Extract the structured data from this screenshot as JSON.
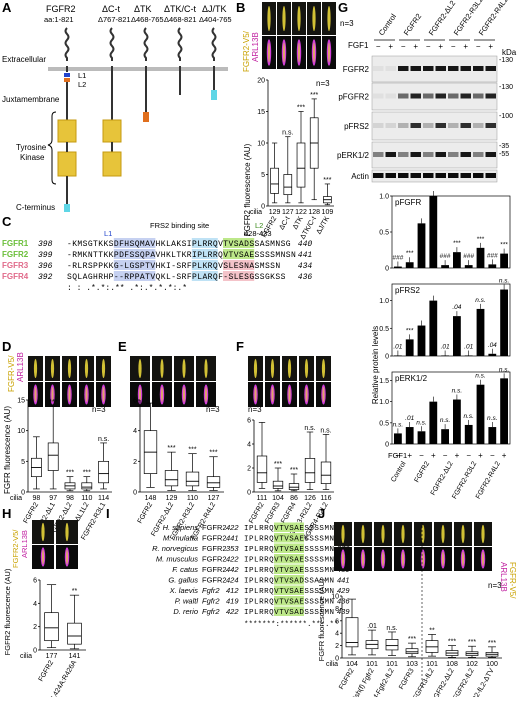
{
  "panel_letters": [
    "A",
    "B",
    "C",
    "D",
    "E",
    "F",
    "G",
    "H",
    "I",
    "J"
  ],
  "panel_a": {
    "constructs": [
      "FGFR2",
      "ΔC-t",
      "ΔTK",
      "ΔTK/C-t",
      "ΔJ/TK"
    ],
    "ranges": [
      "aa:1-821",
      "Δ767-821",
      "Δ468-765",
      "Δ468-821",
      "Δ404-765"
    ],
    "domains": [
      "Extracellular",
      "Juxtamembrane",
      "Tyrosine Kinase",
      "C-terminus"
    ],
    "motifs": [
      "L1",
      "L2"
    ]
  },
  "panel_b": {
    "channel_labels": [
      "FGFR2-V5/",
      "ARL13B"
    ],
    "ylabel": "FGFR2 fluorescence (AU)",
    "n": "n=3",
    "yticks": [
      "0",
      "5",
      "10",
      "15",
      "20"
    ],
    "categories": [
      "FGFR2",
      "ΔC-t",
      "ΔTK",
      "ΔTK/C-t",
      "ΔJ/TK"
    ],
    "cilia_label": "cilia",
    "cilia": [
      "129",
      "127",
      "122",
      "128",
      "109"
    ],
    "sig": [
      "",
      "n.s.",
      "***",
      "***",
      "***"
    ]
  },
  "panel_c": {
    "binding_site": "FRS2 binding site",
    "l1": "L1",
    "l2": "L2",
    "l2_range": "428-433",
    "rows": [
      {
        "name": "FGFR1",
        "start": "398",
        "seq": "-KMSGTKKSDFHSQMAVHKLAKSIPLRRQVTVSADSSASMNSG",
        "end": "440",
        "color": "#6bbf3a"
      },
      {
        "name": "FGFR2",
        "start": "399",
        "seq": "-RMKNTTKKPDFSSQPAVHKLTKRIPLRRQVTVSAESSSSMNSN",
        "end": "441",
        "color": "#6bbf3a"
      },
      {
        "name": "FGFR3",
        "start": "396",
        "seq": "-RLRSPPKKG-LGSPTVHKI-SRFPLKRQVSLESNASMSSN",
        "end": "434",
        "color": "#e06a8a"
      },
      {
        "name": "FGFR4",
        "start": "392",
        "seq": "SQLAGHRHP--RPPATVQKL-SRFPLARQF-SLESGSSGKSS",
        "end": "436",
        "color": "#e06a8a"
      }
    ],
    "consensus": ":          :   .*.*:.** .*:.*.*.*:.*"
  },
  "panel_d": {
    "channel_labels": [
      "FGFR-V5/",
      "ARL13B"
    ],
    "ylabel": "FGFR fluorescence (AU)",
    "n": "n=3",
    "yticks": [
      "0",
      "5",
      "10",
      "15"
    ],
    "categories": [
      "FGFR2",
      "FGFR2-ΔL1",
      "FGFR2-ΔL2",
      "FGFR2-ΔL1L2",
      "FGFR2-R3L1"
    ],
    "cilia_label": "cilia",
    "cilia": [
      "98",
      "97",
      "98",
      "110",
      "114"
    ],
    "sig": [
      "",
      "***",
      "***",
      "***",
      "n.s."
    ]
  },
  "panel_e": {
    "n": "n=3",
    "yticks": [
      "0",
      "2",
      "4",
      "6"
    ],
    "categories": [
      "FGFR2",
      "FGFR2-ΔL2",
      "FGFR2-R3L2",
      "FGFR2-R4L2"
    ],
    "cilia": [
      "148",
      "129",
      "110",
      "127"
    ],
    "sig": [
      "",
      "***",
      "***",
      "***"
    ]
  },
  "panel_f": {
    "n": "n=3",
    "yticks": [
      "0",
      "2",
      "4",
      "6"
    ],
    "categories": [
      "FGFR2",
      "FGFR3",
      "FGFR4",
      "FGFR3-R2L2",
      "FGFR4-R2L2"
    ],
    "cilia": [
      "111",
      "104",
      "86",
      "126",
      "116"
    ],
    "sig": [
      "",
      "***",
      "***",
      "n.s.",
      "n.s."
    ]
  },
  "panel_g": {
    "n": "n=3",
    "lanes": [
      "Control",
      "FGFR2",
      "FGFR2-ΔL2",
      "FGFR2-R3L2",
      "FGFR2-R4L2"
    ],
    "fgf1_label": "FGF1",
    "kda_label": "kDa",
    "blots": [
      {
        "name": "FGFR2",
        "markers": [
          "130"
        ]
      },
      {
        "name": "pFGFR2",
        "markers": [
          "130"
        ]
      },
      {
        "name": "pFRS2",
        "markers": [
          "100"
        ]
      },
      {
        "name": "pERK1/2",
        "markers": [
          "35",
          "55"
        ]
      },
      {
        "name": "Actin",
        "markers": []
      }
    ]
  },
  "panel_g_bars": {
    "ylabel": "Relative protein levels",
    "fgf1_label": "FGF1",
    "categories": [
      "Control",
      "FGFR2",
      "FGFR2-ΔL2",
      "FGFR2-R3L2",
      "FGFR2-R4L2"
    ],
    "subplots": [
      {
        "title": "pFGFR",
        "yticks": [
          "0",
          "0.5",
          "1.0"
        ],
        "values": [
          0.02,
          0.08,
          0.62,
          1.0,
          0.04,
          0.22,
          0.04,
          0.28,
          0.05,
          0.2
        ],
        "labels": [
          "###",
          "***",
          "",
          "",
          "###",
          "***",
          "###",
          "***",
          "###",
          "***"
        ]
      },
      {
        "title": "pFRS2",
        "yticks": [
          "0",
          "0.5",
          "1.0"
        ],
        "values": [
          0.01,
          0.3,
          0.55,
          1.0,
          0.01,
          0.72,
          0.01,
          0.85,
          0.04,
          1.2
        ],
        "labels": [
          ".01",
          "***",
          "",
          "",
          ".01",
          ".04",
          ".01",
          "n.s.",
          ".04",
          "n.s."
        ]
      },
      {
        "title": "pERK1/2",
        "yticks": [
          "0",
          "0.5",
          "1.0",
          "1.5"
        ],
        "values": [
          0.25,
          0.4,
          0.3,
          1.0,
          0.35,
          1.05,
          0.45,
          1.4,
          0.4,
          1.55
        ],
        "labels": [
          "n.s.",
          ".01",
          "n.s.",
          "",
          "n.s.",
          "n.s.",
          "n.s.",
          "n.s.",
          "n.s.",
          "n.s."
        ]
      }
    ]
  },
  "panel_h": {
    "channel_labels": [
      "FGFR2-V5/",
      "ARL13B"
    ],
    "ylabel": "FGFR2 fluorescence (AU)",
    "yticks": [
      "0",
      "2",
      "4",
      "6"
    ],
    "categories": [
      "FGFR2",
      "L424A:R426A"
    ],
    "cilia_label": "cilia",
    "cilia": [
      "177",
      "141"
    ],
    "sig": [
      "",
      "**"
    ]
  },
  "panel_i": {
    "rows": [
      {
        "species": "H. sapiens",
        "gene": "FGFR2",
        "start": "422",
        "seq": "IPLRRQVTVSAESSSSMN",
        "end": "439"
      },
      {
        "species": "M. mulatta",
        "gene": "FGFR2",
        "start": "441",
        "seq": "IPLRRQVTVSAESSSSMN",
        "end": "458"
      },
      {
        "species": "R. norvegicus",
        "gene": "FGFR2",
        "start": "353",
        "seq": "IPLRRQVTVSAESSSSMN",
        "end": "370"
      },
      {
        "species": "M. musculus",
        "gene": "FGFR2",
        "start": "422",
        "seq": "IPLRRQVTVSAESSSSMN",
        "end": "439"
      },
      {
        "species": "F. catus",
        "gene": "FGFR2",
        "start": "442",
        "seq": "IPLRRQVTVSAESSSSMN",
        "end": "459"
      },
      {
        "species": "G. gallus",
        "gene": "FGFR2",
        "start": "424",
        "seq": "IPLRRQVTVSADSSASMN",
        "end": "441"
      },
      {
        "species": "X. laevis",
        "gene": "Fgfr2",
        "start": "412",
        "seq": "IPLRRQVTVSAESSSSMN",
        "end": "429"
      },
      {
        "species": "P. waltl",
        "gene": "Fgfr2",
        "start": "419",
        "seq": "IPLRRQVTVSAESSSSMN",
        "end": "436"
      },
      {
        "species": "D. rerio",
        "gene": "Fgfr2",
        "start": "422",
        "seq": "IPLRRQVTVSADSSSSMN",
        "end": "439"
      }
    ],
    "consensus": "*******:******.**:.**"
  },
  "panel_j": {
    "channel_labels": [
      "FGFR-V5/",
      "ARL13B"
    ],
    "n": "n=3",
    "ylabel": "FGFR fluorescence (AU)",
    "yticks": [
      "0",
      "2",
      "4",
      "6",
      "8",
      "10"
    ],
    "categories": [
      "FGFR2",
      "fish(f) Fgfr2",
      "f-Fgfr2-fL2",
      "FGFR3",
      "FGFR3-fL2",
      "FGFR2-ΔL2",
      "FGFR2-fL2",
      "FGFR2-fL2-ΔTV"
    ],
    "cilia_label": "cilia",
    "cilia": [
      "104",
      "101",
      "101",
      "103",
      "101",
      "108",
      "102",
      "100"
    ],
    "sig": [
      "",
      ".01",
      "n.s.",
      "***",
      "**",
      "***",
      "***",
      "***"
    ]
  }
}
